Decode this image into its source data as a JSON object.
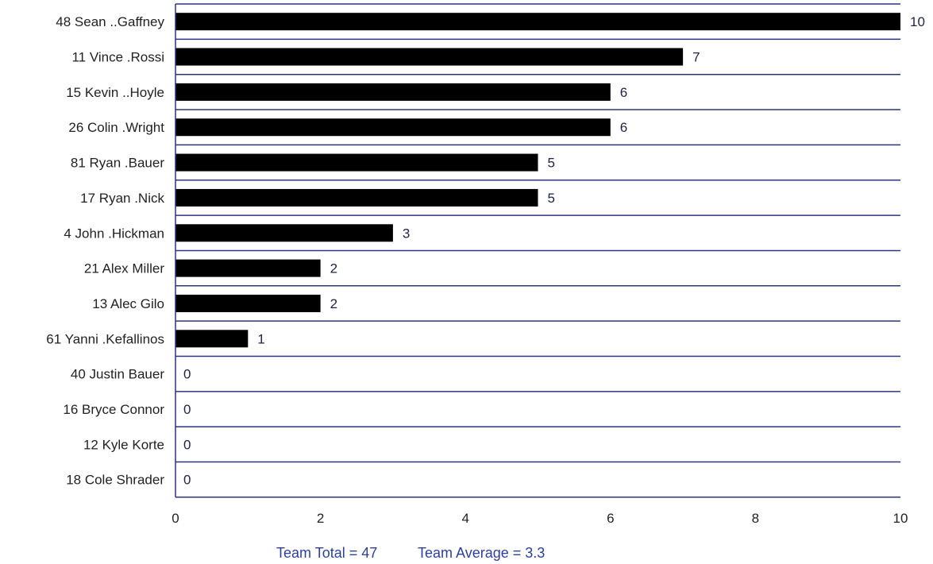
{
  "chart_data": {
    "type": "bar",
    "orientation": "horizontal",
    "categories": [
      "48 Sean ..Gaffney",
      "11 Vince .Rossi",
      "15 Kevin ..Hoyle",
      "26 Colin .Wright",
      "81 Ryan .Bauer",
      "17 Ryan .Nick",
      "4 John .Hickman",
      "21 Alex Miller",
      "13 Alec Gilo",
      "61 Yanni .Kefallinos",
      "40 Justin Bauer",
      "16 Bryce Connor",
      "12 Kyle Korte",
      "18 Cole Shrader"
    ],
    "values": [
      10,
      7,
      6,
      6,
      5,
      5,
      3,
      2,
      2,
      1,
      0,
      0,
      0,
      0
    ],
    "value_labels": [
      "10",
      "7",
      "6",
      "6",
      "5",
      "5",
      "3",
      "2",
      "2",
      "1",
      "0",
      "0",
      "0",
      "0"
    ],
    "xlim": [
      0,
      10
    ],
    "xticks": [
      0,
      2,
      4,
      6,
      8,
      10
    ],
    "xtick_labels": [
      "0",
      "2",
      "4",
      "6",
      "8",
      "10"
    ],
    "title": "",
    "xlabel": "",
    "ylabel": "",
    "grid": "horizontal separators",
    "bar_color": "#000000",
    "line_color": "#2c3480"
  },
  "footer": {
    "team_total": "Team Total = 47",
    "team_average": "Team Average = 3.3"
  }
}
